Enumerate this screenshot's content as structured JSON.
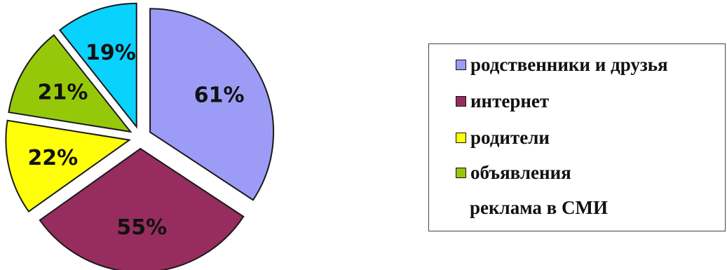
{
  "chart_data": {
    "type": "pie",
    "slices": [
      {
        "label": "61%",
        "value": 61,
        "color": "#9c9cf6"
      },
      {
        "label": "55%",
        "value": 55,
        "color": "#962d5e"
      },
      {
        "label": "22%",
        "value": 22,
        "color": "#ffff0a"
      },
      {
        "label": "21%",
        "value": 21,
        "color": "#96c80a"
      },
      {
        "label": "19%",
        "value": 19,
        "color": "#0ad2ff"
      }
    ],
    "legend": [
      {
        "label": "родственники и друзья",
        "color": "#9c9cf6"
      },
      {
        "label": "интернет",
        "color": "#962d5e"
      },
      {
        "label": "родители",
        "color": "#ffff0a"
      },
      {
        "label": "объявления",
        "color": "#96c80a"
      }
    ],
    "legend_extra": "реклама в СМИ",
    "legend_position": "right",
    "exploded": true
  }
}
